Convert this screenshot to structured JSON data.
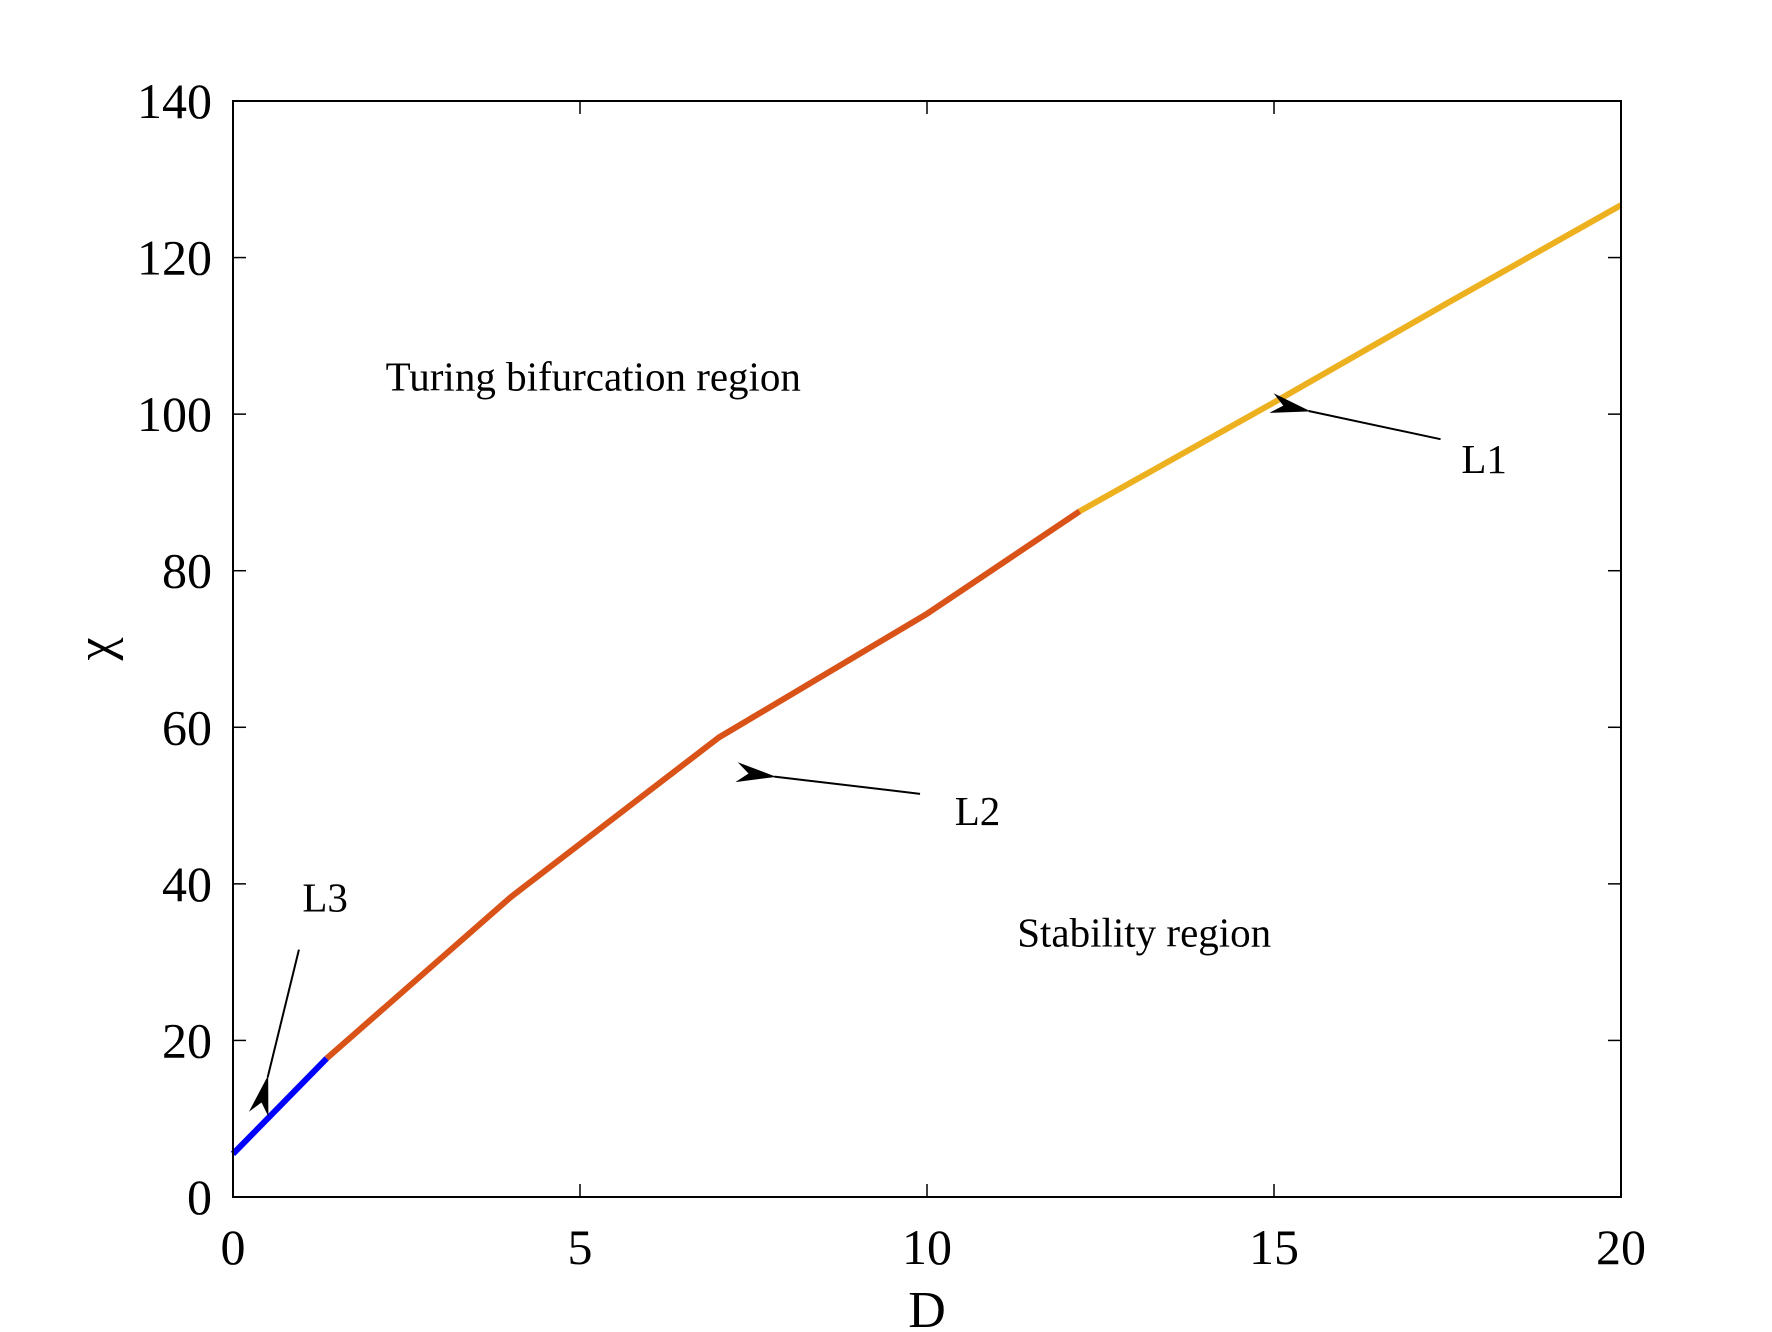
{
  "chart_data": {
    "type": "line",
    "xlabel": "D",
    "ylabel": "χ",
    "xlim": [
      0,
      20
    ],
    "ylim": [
      0,
      140
    ],
    "x_ticks": [
      0,
      5,
      10,
      15,
      20
    ],
    "y_ticks": [
      0,
      20,
      40,
      60,
      80,
      100,
      120,
      140
    ],
    "grid": false,
    "series": [
      {
        "name": "L3",
        "color": "#0000ff",
        "x": [
          0,
          1.35
        ],
        "y": [
          5.5,
          17.7
        ]
      },
      {
        "name": "L2",
        "color": "#d95319",
        "x": [
          1.35,
          4,
          7,
          10,
          12.2
        ],
        "y": [
          17.7,
          38.3,
          58.7,
          74.5,
          87.6
        ]
      },
      {
        "name": "L1",
        "color": "#edb120",
        "x": [
          12.2,
          15,
          17.5,
          20
        ],
        "y": [
          87.6,
          101.5,
          114.2,
          126.7
        ]
      }
    ],
    "annotations": [
      {
        "id": "turing",
        "text": "Turing bifurcation region",
        "x": 2.2,
        "y": 103
      },
      {
        "id": "stability",
        "text": "Stability region",
        "x": 11.3,
        "y": 32
      },
      {
        "id": "l1",
        "text": "L1",
        "x": 17.7,
        "y": 92.5,
        "arrow_from": [
          17.4,
          96.8
        ],
        "arrow_to": [
          15.5,
          100.4
        ]
      },
      {
        "id": "l2",
        "text": "L2",
        "x": 10.4,
        "y": 47.5,
        "arrow_from": [
          9.9,
          51.5
        ],
        "arrow_to": [
          7.8,
          53.7
        ]
      },
      {
        "id": "l3",
        "text": "L3",
        "x": 1.0,
        "y": 36.5,
        "arrow_from": [
          0.95,
          31.6
        ],
        "arrow_to": [
          0.5,
          15.3
        ]
      }
    ]
  }
}
